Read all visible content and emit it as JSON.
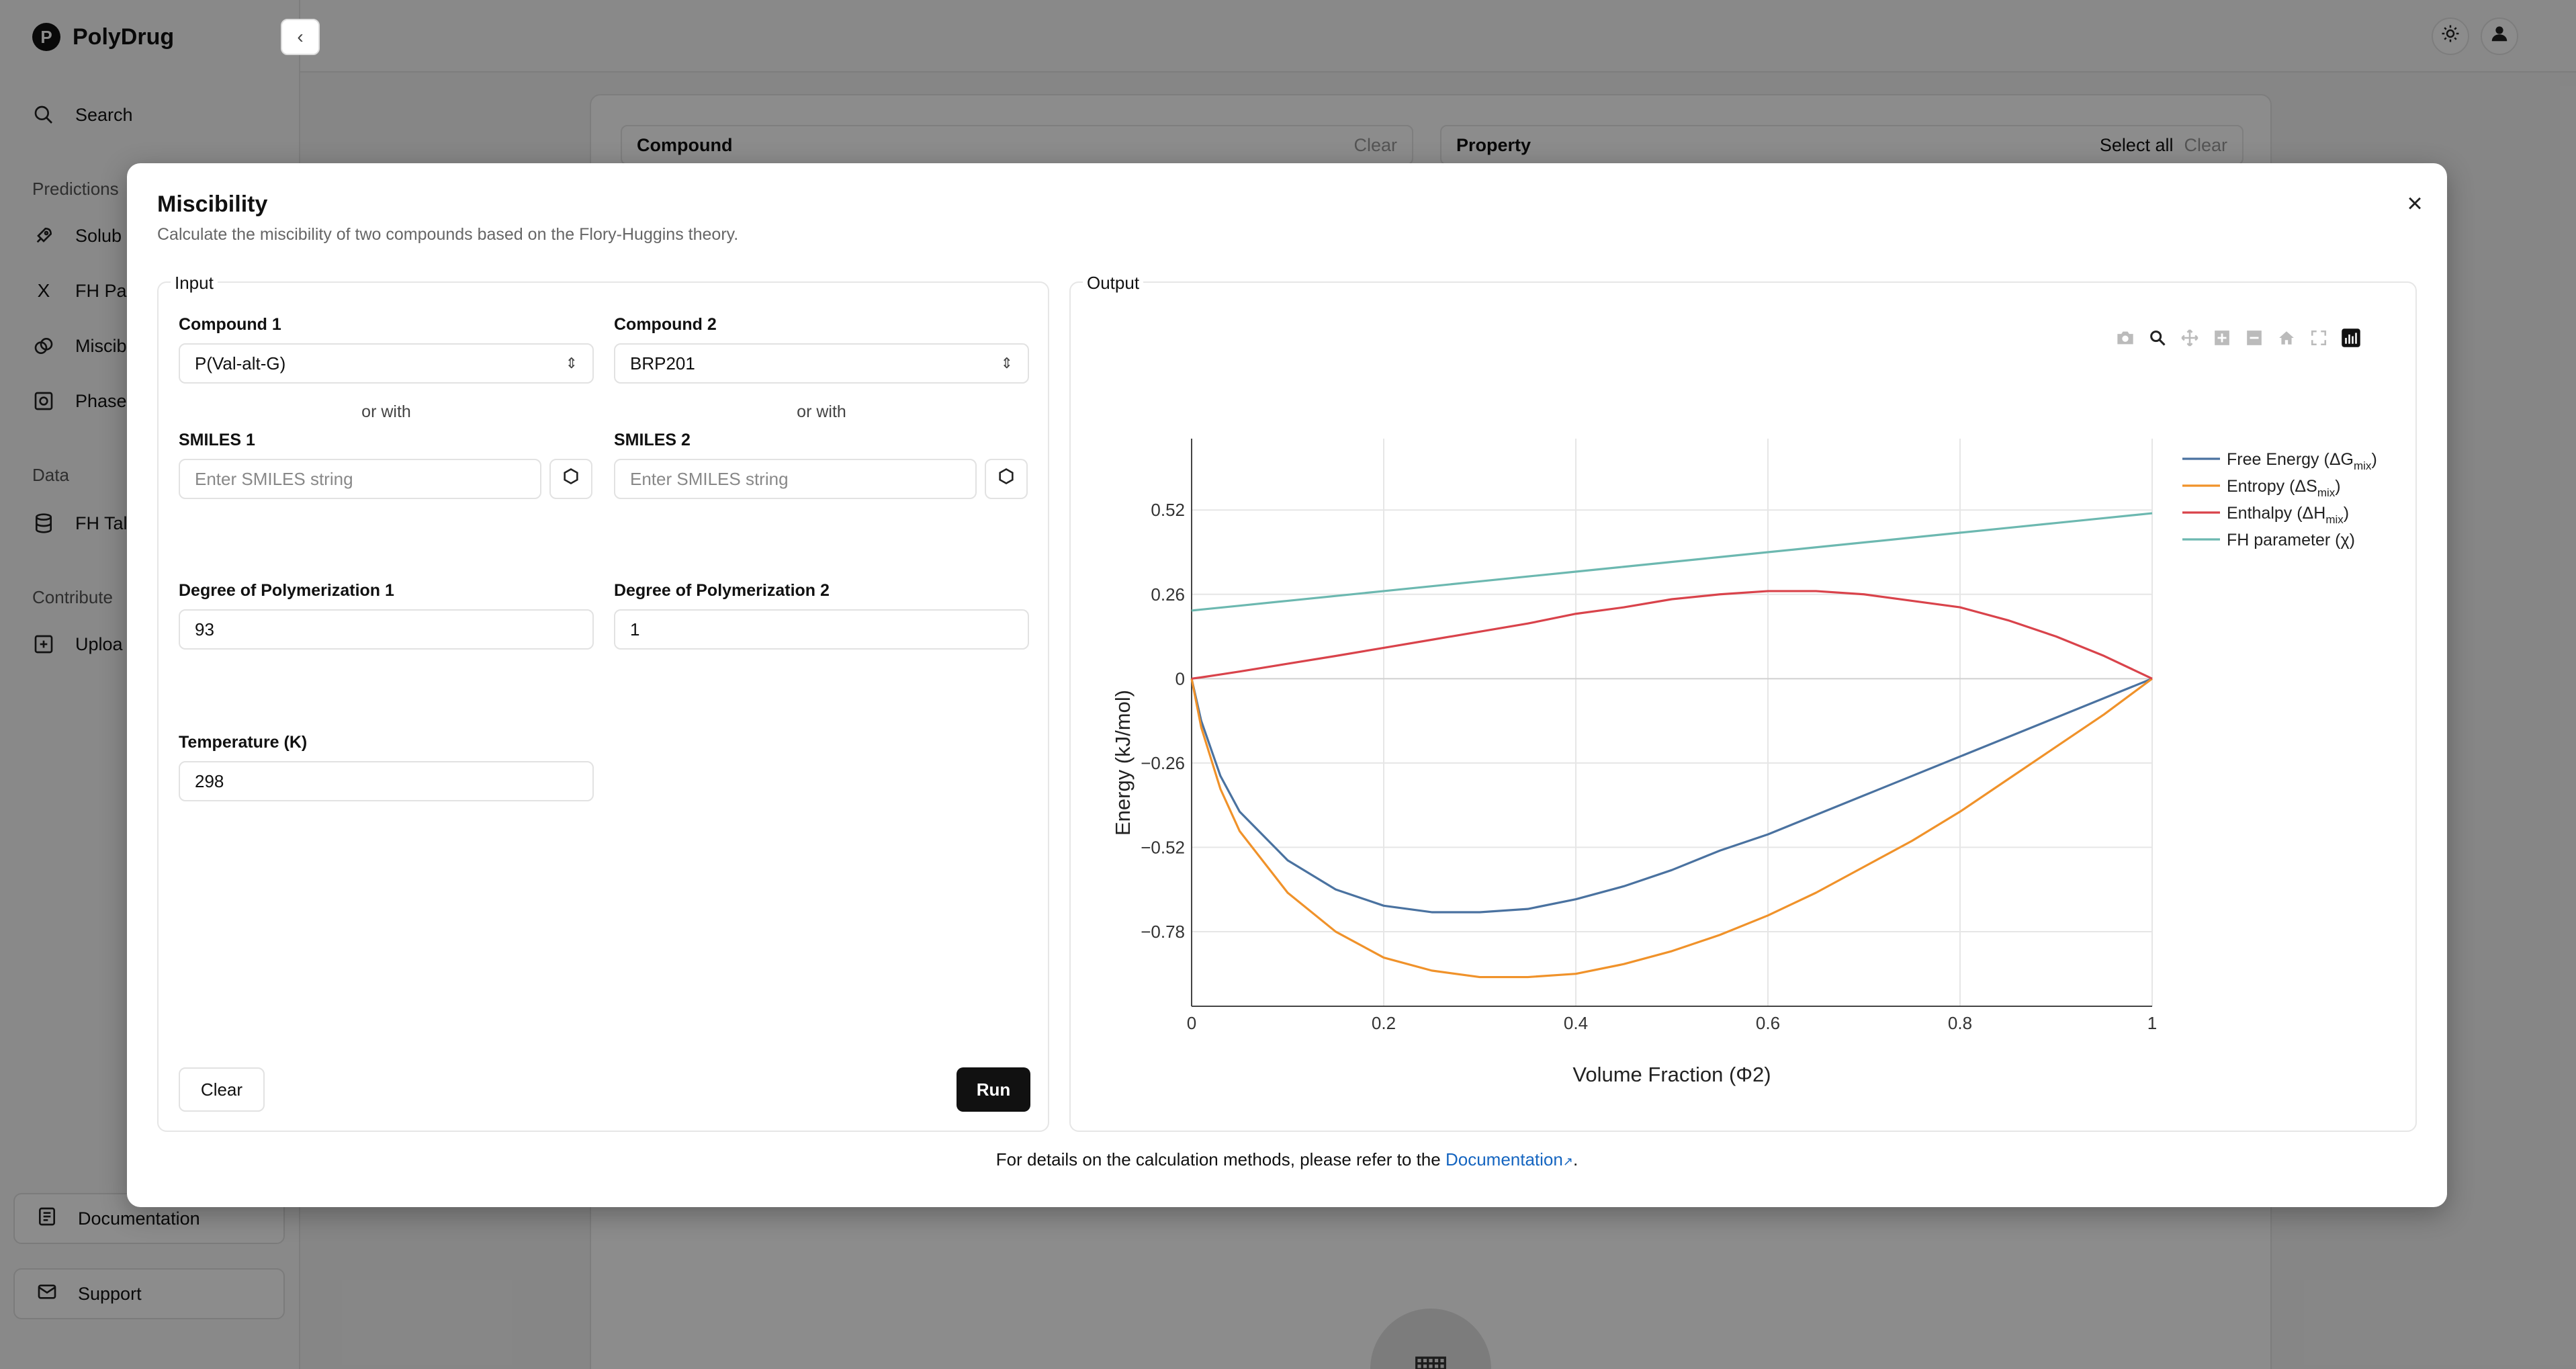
{
  "app": {
    "name": "PolyDrug",
    "collapse_icon": "‹"
  },
  "sidebar": {
    "search": "Search",
    "sections": {
      "predictions": "Predictions",
      "data": "Data",
      "contribute": "Contribute"
    },
    "items": [
      {
        "label": "Solub",
        "icon": "rocket-icon"
      },
      {
        "label": "FH Pa",
        "icon": "x-icon"
      },
      {
        "label": "Miscib",
        "icon": "rings-icon"
      },
      {
        "label": "Phase",
        "icon": "target-icon"
      }
    ],
    "data_items": [
      {
        "label": "FH Tal",
        "icon": "database-icon"
      }
    ],
    "contribute_items": [
      {
        "label": "Uploa",
        "icon": "plus-square-icon"
      }
    ],
    "bottom": {
      "documentation": "Documentation",
      "support": "Support"
    }
  },
  "background": {
    "compound_label": "Compound",
    "compound_clear": "Clear",
    "property_label": "Property",
    "property_select_all": "Select all",
    "property_clear": "Clear"
  },
  "modal": {
    "title": "Miscibility",
    "description": "Calculate the miscibility of two compounds based on the Flory-Huggins theory.",
    "close_icon": "×",
    "input": {
      "legend": "Input",
      "compound1_label": "Compound 1",
      "compound1_value": "P(Val-alt-G)",
      "compound2_label": "Compound 2",
      "compound2_value": "BRP201",
      "or_with": "or with",
      "smiles1_label": "SMILES 1",
      "smiles2_label": "SMILES 2",
      "smiles_placeholder": "Enter SMILES string",
      "dp1_label": "Degree of Polymerization 1",
      "dp1_value": "93",
      "dp2_label": "Degree of Polymerization 2",
      "dp2_value": "1",
      "temp_label": "Temperature (K)",
      "temp_value": "298",
      "clear_button": "Clear",
      "run_button": "Run"
    },
    "output": {
      "legend": "Output"
    },
    "footer": {
      "text": "For details on the calculation methods, please refer to the ",
      "link": "Documentation",
      "link_icon": "↗",
      "suffix": "."
    }
  },
  "colors": {
    "free_energy": "#4a72a0",
    "entropy": "#f0922a",
    "enthalpy": "#d9434b",
    "fh_parameter": "#6cb8b0"
  },
  "chart_data": {
    "type": "line",
    "xlabel": "Volume Fraction (Φ2)",
    "ylabel": "Energy (kJ/mol)",
    "xlim": [
      0,
      1
    ],
    "ylim": [
      -1.01,
      0.74
    ],
    "x_ticks": [
      "0",
      "0.2",
      "0.4",
      "0.6",
      "0.8",
      "1"
    ],
    "y_ticks": [
      "0.52",
      "0.26",
      "0",
      "−0.26",
      "−0.52",
      "−0.78"
    ],
    "y_tick_values": [
      0.52,
      0.26,
      0,
      -0.26,
      -0.52,
      -0.78
    ],
    "grid": true,
    "legend_position": "top-right",
    "x": [
      0,
      0.01,
      0.03,
      0.05,
      0.1,
      0.15,
      0.2,
      0.25,
      0.3,
      0.35,
      0.4,
      0.45,
      0.5,
      0.55,
      0.6,
      0.65,
      0.7,
      0.75,
      0.8,
      0.85,
      0.9,
      0.95,
      1.0
    ],
    "series": [
      {
        "name": "Free Energy (ΔG",
        "sub": "mix",
        "suffix": ")",
        "key": "free_energy",
        "values": [
          0,
          -0.13,
          -0.3,
          -0.41,
          -0.56,
          -0.65,
          -0.7,
          -0.72,
          -0.72,
          -0.71,
          -0.68,
          -0.64,
          -0.59,
          -0.53,
          -0.48,
          -0.42,
          -0.36,
          -0.3,
          -0.24,
          -0.18,
          -0.12,
          -0.06,
          0
        ]
      },
      {
        "name": "Entropy (ΔS",
        "sub": "mix",
        "suffix": ")",
        "key": "entropy",
        "values": [
          0,
          -0.15,
          -0.34,
          -0.47,
          -0.66,
          -0.78,
          -0.86,
          -0.9,
          -0.92,
          -0.92,
          -0.91,
          -0.88,
          -0.84,
          -0.79,
          -0.73,
          -0.66,
          -0.58,
          -0.5,
          -0.41,
          -0.31,
          -0.21,
          -0.11,
          0
        ]
      },
      {
        "name": "Enthalpy (ΔH",
        "sub": "mix",
        "suffix": ")",
        "key": "enthalpy",
        "values": [
          0,
          0.004,
          0.013,
          0.022,
          0.046,
          0.07,
          0.095,
          0.12,
          0.145,
          0.17,
          0.2,
          0.22,
          0.245,
          0.26,
          0.27,
          0.27,
          0.26,
          0.24,
          0.22,
          0.18,
          0.13,
          0.07,
          0
        ]
      },
      {
        "name": "FH parameter (χ)",
        "sub": "",
        "suffix": "",
        "key": "fh_parameter",
        "values": [
          0.21,
          0.213,
          0.219,
          0.225,
          0.24,
          0.255,
          0.27,
          0.285,
          0.3,
          0.315,
          0.33,
          0.345,
          0.36,
          0.375,
          0.39,
          0.405,
          0.42,
          0.435,
          0.45,
          0.465,
          0.48,
          0.495,
          0.51
        ]
      }
    ]
  }
}
